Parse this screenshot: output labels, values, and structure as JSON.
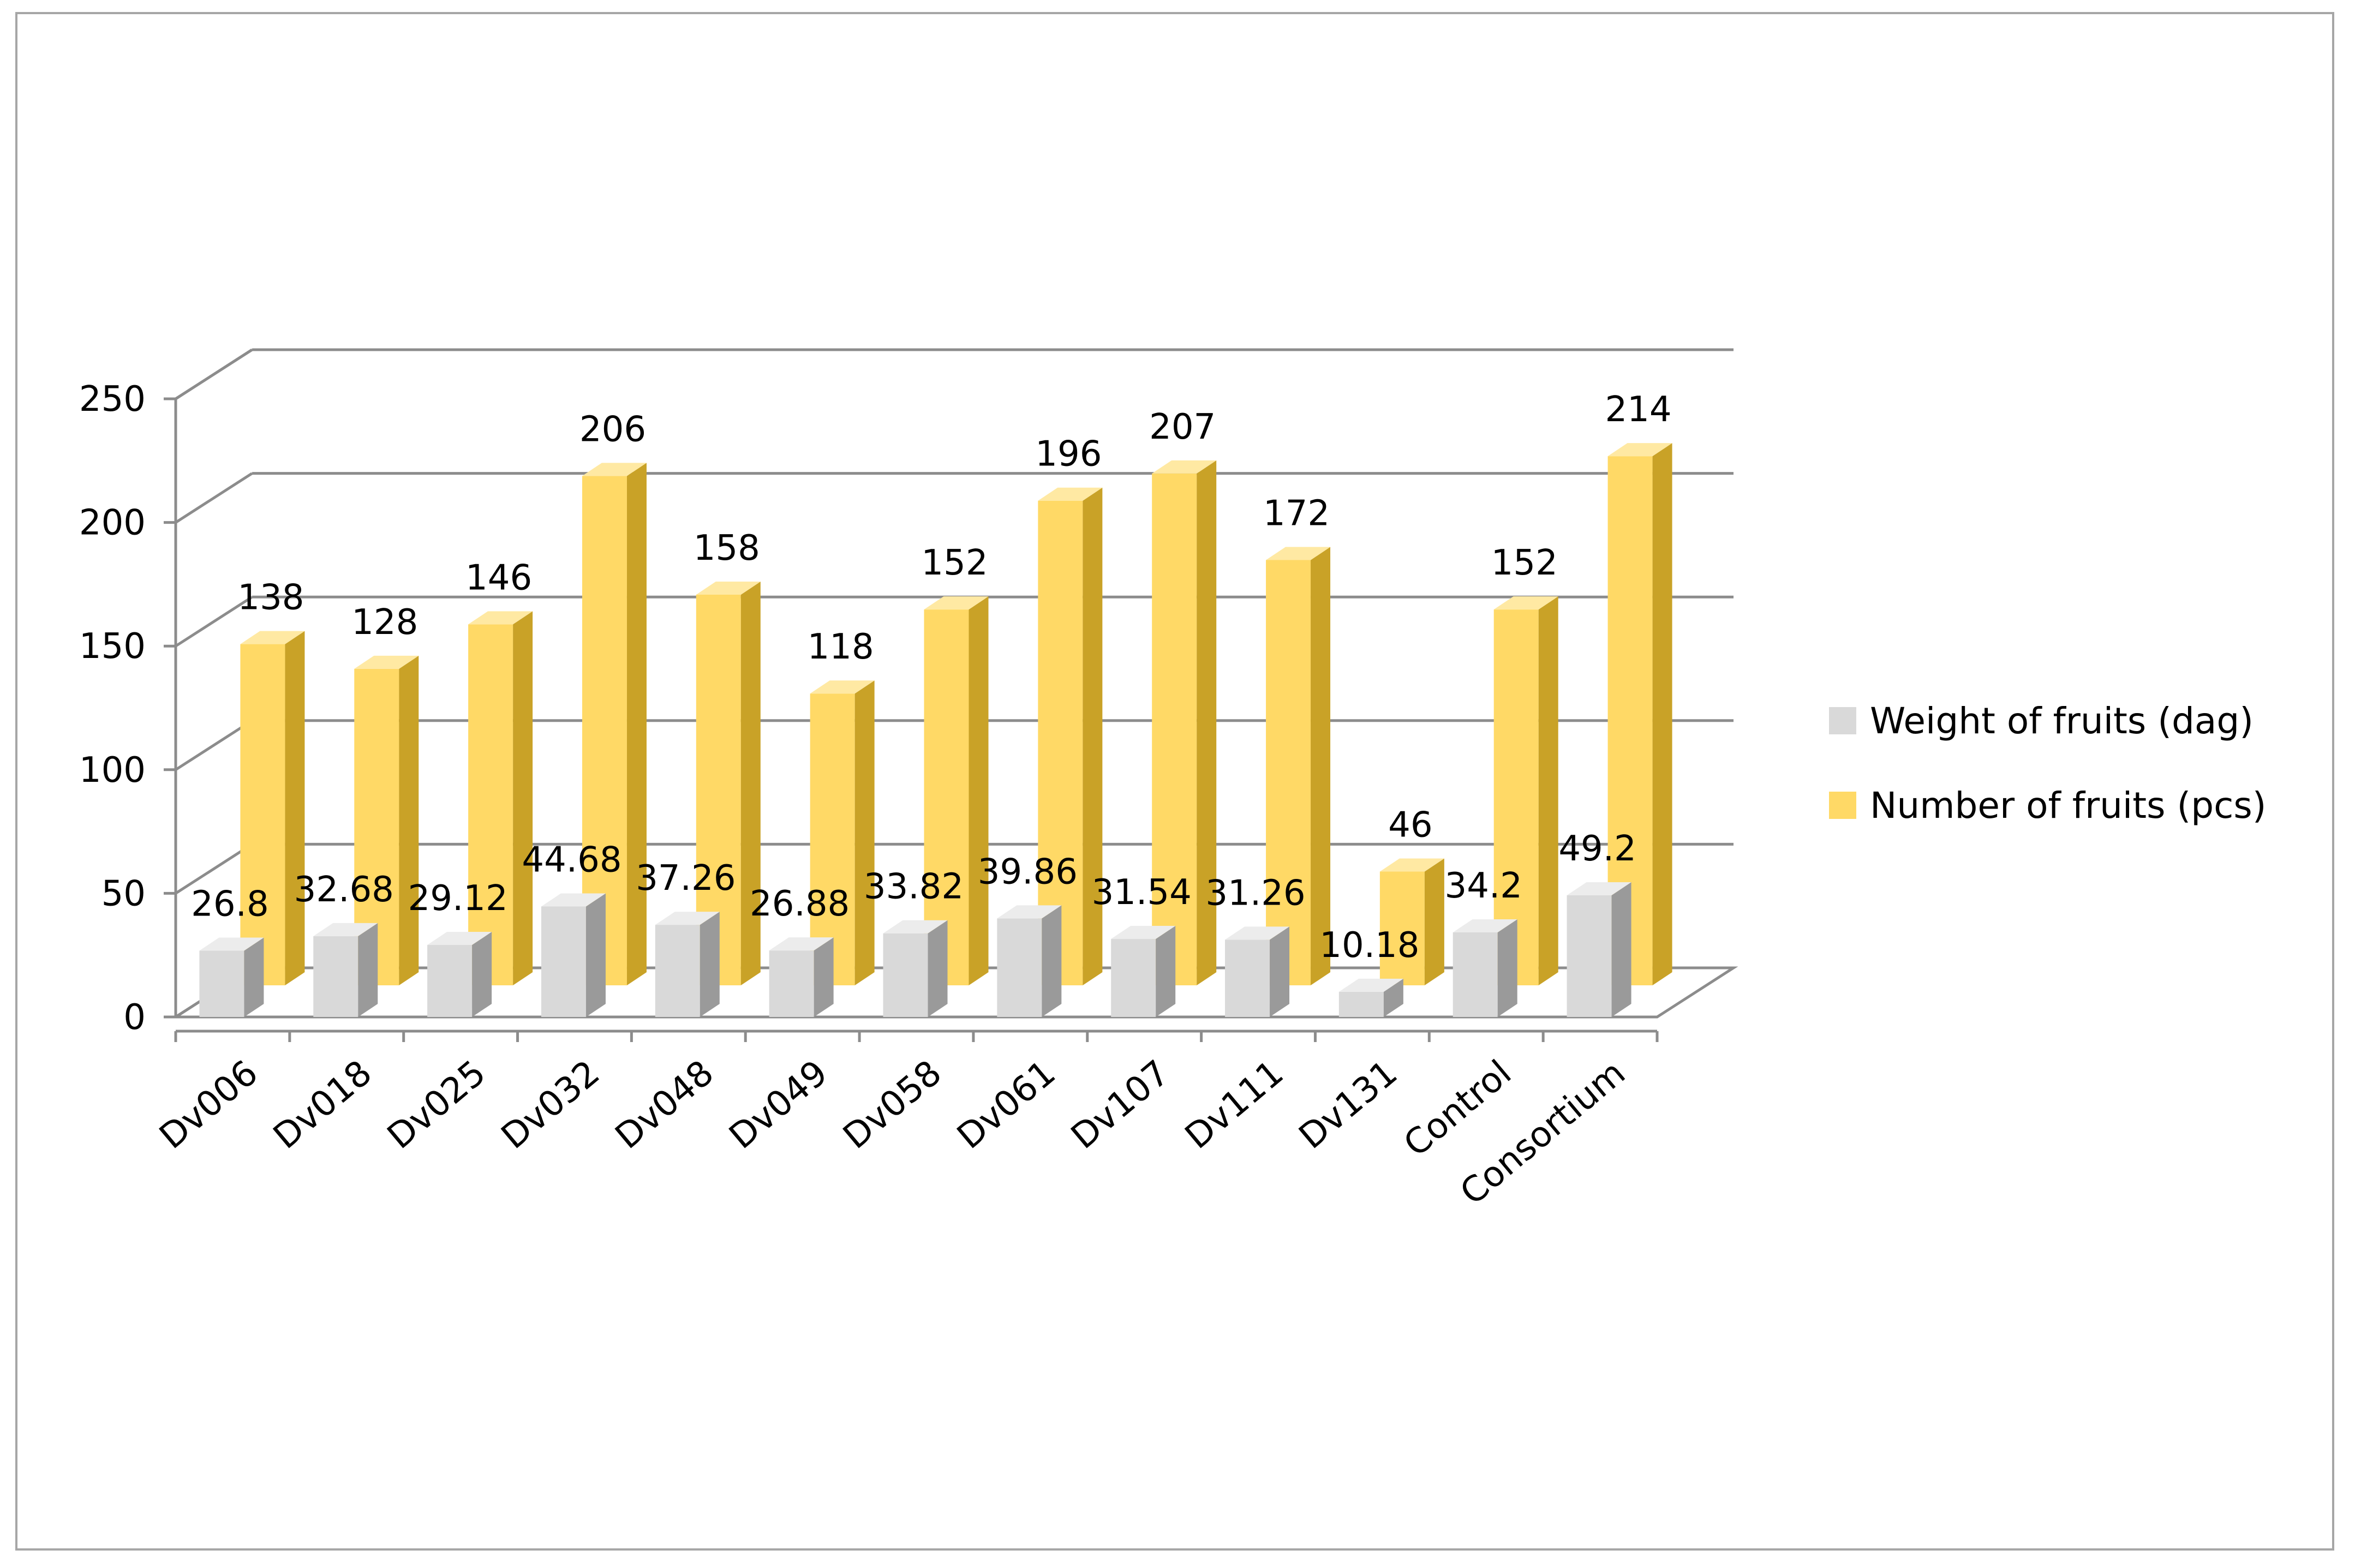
{
  "chart_data": {
    "type": "bar",
    "style": "3d-clustered-column",
    "categories": [
      "Dv006",
      "Dv018",
      "Dv025",
      "Dv032",
      "Dv048",
      "Dv049",
      "Dv058",
      "Dv061",
      "Dv107",
      "Dv111",
      "Dv131",
      "Control",
      "Consortium"
    ],
    "series": [
      {
        "name": "Weight of fruits (dag)",
        "color": "#d9d9d9",
        "values": [
          26.8,
          32.68,
          29.12,
          44.68,
          37.26,
          26.88,
          33.82,
          39.86,
          31.54,
          31.26,
          10.18,
          34.2,
          49.2
        ],
        "labels": [
          "26.8",
          "32.68",
          "29.12",
          "44.68",
          "37.26",
          "26.88",
          "33.82",
          "39.86",
          "31.54",
          "31.26",
          "10.18",
          "34.2",
          "49.2"
        ]
      },
      {
        "name": "Number of fruits (pcs)",
        "color": "#ffd966",
        "values": [
          138,
          128,
          146,
          206,
          158,
          118,
          152,
          196,
          207,
          172,
          46,
          152,
          214
        ],
        "labels": [
          "138",
          "128",
          "146",
          "206",
          "158",
          "118",
          "152",
          "196",
          "207",
          "172",
          "46",
          "152",
          "214"
        ]
      }
    ],
    "y_ticks": [
      "0",
      "50",
      "100",
      "150",
      "200",
      "250"
    ],
    "ylim": [
      0,
      250
    ],
    "grid": true,
    "legend_position": "right",
    "title": "",
    "xlabel": "",
    "ylabel": ""
  }
}
